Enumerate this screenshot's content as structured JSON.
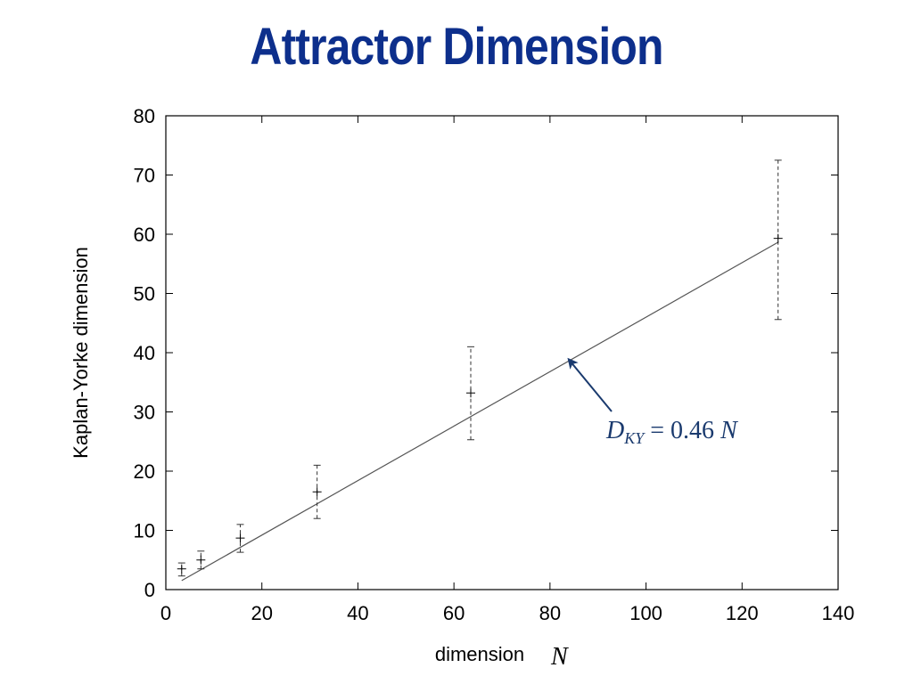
{
  "slide": {
    "title": "Attractor Dimension"
  },
  "colors": {
    "title": "#0d2f8c",
    "annotation": "#1a3a6e",
    "line": "#555555",
    "errorbar": "#333333"
  },
  "chart_data": {
    "type": "scatter",
    "xlabel": "dimension",
    "xlabel_var": "N",
    "ylabel": "Kaplan-Yorke dimension",
    "xlim": [
      0,
      140
    ],
    "ylim": [
      0,
      80
    ],
    "x_ticks": [
      0,
      20,
      40,
      60,
      80,
      100,
      120,
      140
    ],
    "y_ticks": [
      0,
      10,
      20,
      30,
      40,
      50,
      60,
      70,
      80
    ],
    "grid": false,
    "points": [
      {
        "x": 3.3,
        "y": 3.5,
        "ylow": 2.3,
        "yhigh": 4.5
      },
      {
        "x": 7.3,
        "y": 5.0,
        "ylow": 3.5,
        "yhigh": 6.5
      },
      {
        "x": 15.5,
        "y": 8.7,
        "ylow": 6.3,
        "yhigh": 11.0
      },
      {
        "x": 31.5,
        "y": 16.5,
        "ylow": 12.0,
        "yhigh": 21.0
      },
      {
        "x": 63.5,
        "y": 33.2,
        "ylow": 25.3,
        "yhigh": 41.0
      },
      {
        "x": 127.5,
        "y": 59.3,
        "ylow": 45.6,
        "yhigh": 72.5
      }
    ],
    "fit_line": {
      "slope": 0.46,
      "x_start": 3.3,
      "x_end": 127.5
    },
    "annotation": {
      "D": "D",
      "subscript": "KY",
      "equation": " = 0.46 ",
      "var": "N",
      "arrow_target": {
        "x": 83.5,
        "y": 39.5
      }
    }
  }
}
